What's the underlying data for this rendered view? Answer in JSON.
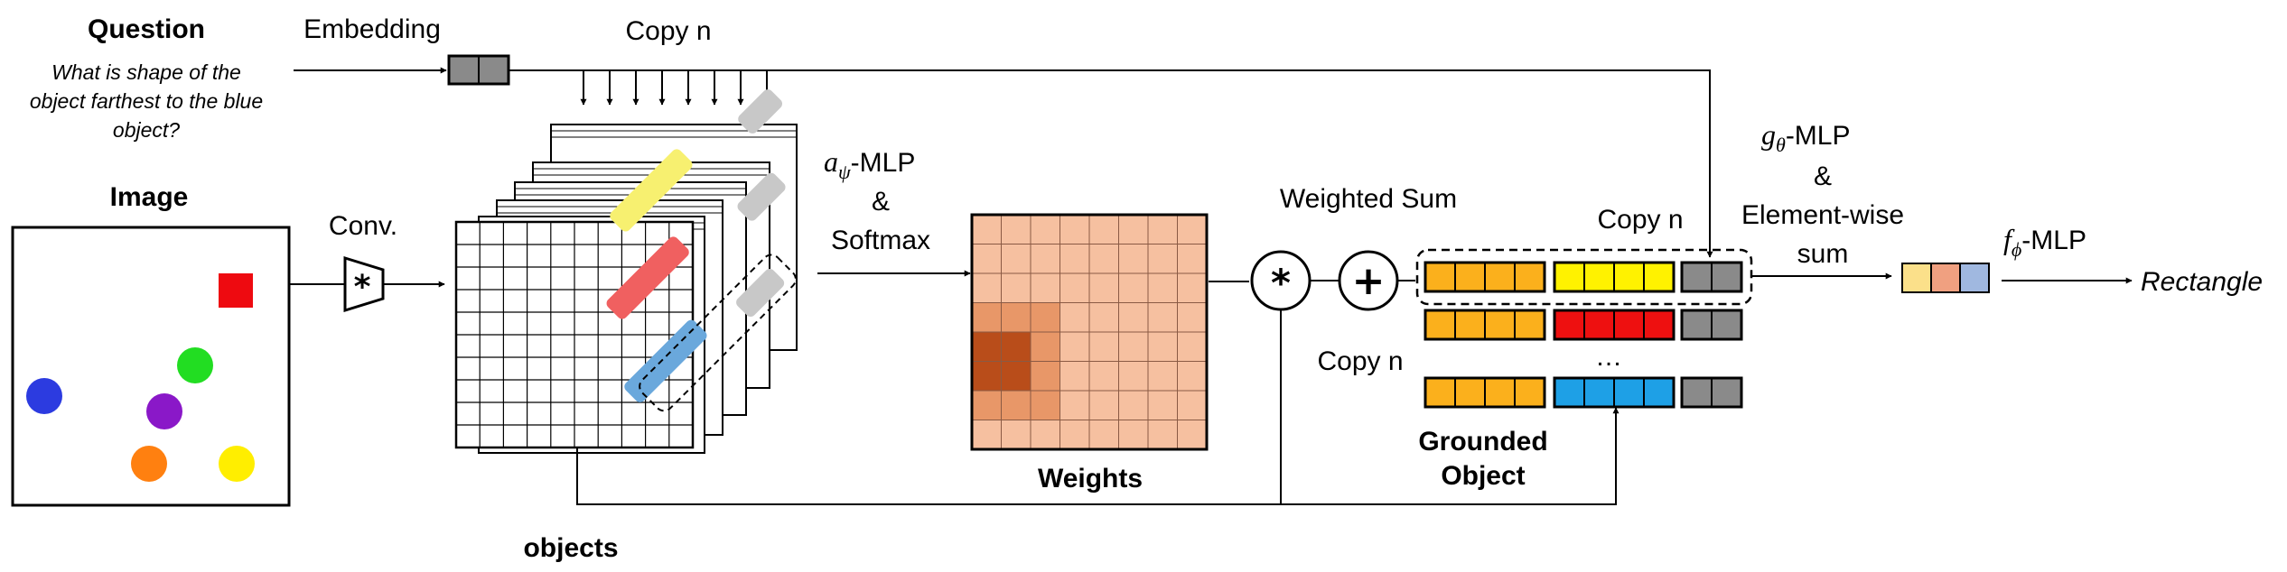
{
  "question": {
    "title": "Question",
    "lines": [
      "What is shape of the",
      "object farthest to the blue",
      "object?"
    ]
  },
  "labels": {
    "embedding": "Embedding",
    "copy_n_top": "Copy n",
    "image": "Image",
    "conv": "Conv.",
    "objects": "objects",
    "a_symbol": "a",
    "a_sub": "ψ",
    "a_mlp": "-MLP",
    "ampersand_1": "&",
    "softmax": "Softmax",
    "weights": "Weights",
    "weighted_sum": "Weighted Sum",
    "copy_n_mid": "Copy n",
    "copy_n_right": "Copy n",
    "ellipsis": "…",
    "grounded_line1": "Grounded",
    "grounded_line2": "Object",
    "g_symbol": "g",
    "g_sub": "θ",
    "g_mlp": "-MLP",
    "ampersand_2": "&",
    "elementwise": "Element-wise",
    "sum": "sum",
    "f_symbol": "f",
    "f_sub": "ϕ",
    "f_mlp": "-MLP",
    "answer": "Rectangle"
  },
  "symbols": {
    "conv": "*",
    "multiply": "*",
    "plus": "+"
  },
  "image_objects": [
    {
      "shape": "square",
      "color": "#ee0a10"
    },
    {
      "shape": "circle",
      "color": "#2c3be0"
    },
    {
      "shape": "circle",
      "color": "#22dd22"
    },
    {
      "shape": "circle",
      "color": "#8a18c8"
    },
    {
      "shape": "circle",
      "color": "#ff8010"
    },
    {
      "shape": "circle",
      "color": "#ffee00"
    }
  ],
  "colors": {
    "embedding": "#8a8a8a",
    "weights_base": "#f6c0a0",
    "weights_mid": "#e89768",
    "weights_dark": "#b94d1a",
    "object_orange": "#fbb01c",
    "object_yellow": "#fff200",
    "object_red": "#ee1010",
    "object_blue": "#1ea0e6",
    "feature_yellow": "#f7f070",
    "feature_red": "#f06060",
    "feature_blue": "#6aa8dc",
    "feature_gray": "#c8c8c8",
    "output_1": "#fbe08a",
    "output_2": "#f0a080",
    "output_3": "#a0b8e0"
  },
  "grounded_rows": [
    {
      "object_color": "object_yellow"
    },
    {
      "object_color": "object_red"
    },
    {
      "object_color": "object_blue"
    }
  ]
}
